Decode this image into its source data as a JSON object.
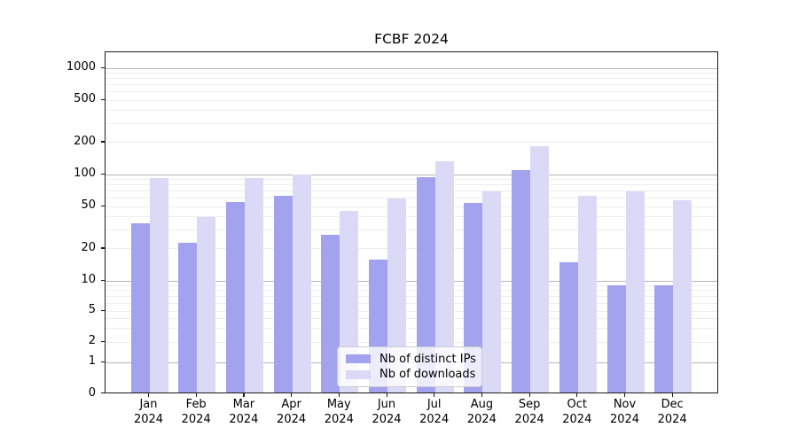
{
  "title": "FCBF 2024",
  "chart_data": {
    "type": "bar",
    "title": "FCBF 2024",
    "categories": [
      "Jan",
      "Feb",
      "Mar",
      "Apr",
      "May",
      "Jun",
      "Jul",
      "Aug",
      "Sep",
      "Oct",
      "Nov",
      "Dec"
    ],
    "category_year": "2024",
    "series": [
      {
        "name": "Nb of distinct IPs",
        "color": "#a2a2ef",
        "values": [
          35,
          23,
          55,
          63,
          27,
          16,
          95,
          54,
          110,
          15,
          9,
          9
        ]
      },
      {
        "name": "Nb of downloads",
        "color": "#dadaf7",
        "values": [
          93,
          40,
          93,
          100,
          46,
          60,
          133,
          70,
          185,
          63,
          69,
          57
        ]
      }
    ],
    "xlabel": "",
    "ylabel": "",
    "yscale": "symlog",
    "yticks": [
      0,
      1,
      2,
      5,
      10,
      20,
      50,
      100,
      200,
      500,
      1000
    ],
    "ylim": [
      0,
      1400
    ],
    "grid": "horizontal",
    "legend_position": "lower-center"
  }
}
